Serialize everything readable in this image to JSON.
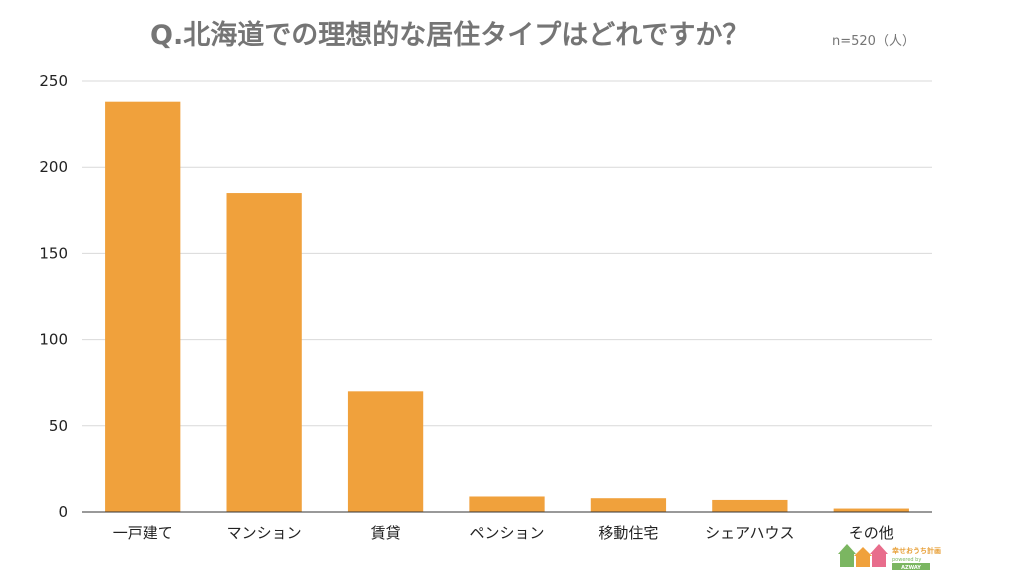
{
  "chart_data": {
    "type": "bar",
    "title": "Q.北海道での理想的な居住タイプはどれですか？",
    "subtitle": "n=520（人）",
    "xlabel": "",
    "ylabel": "",
    "categories": [
      "一戸建て",
      "マンション",
      "賃貸",
      "ペンション",
      "移動住宅",
      "シェアハウス",
      "その他"
    ],
    "values": [
      238,
      185,
      70,
      9,
      8,
      7,
      2
    ],
    "ylim": [
      0,
      250
    ],
    "yticks": [
      "0",
      "50",
      "100",
      "150",
      "200",
      "250"
    ],
    "grid": true,
    "legend": "none",
    "bar_color": "#f0a13c"
  },
  "logo": {
    "name": "幸せおうち計画",
    "tagline": "powered by",
    "brand": "AZWAY"
  }
}
